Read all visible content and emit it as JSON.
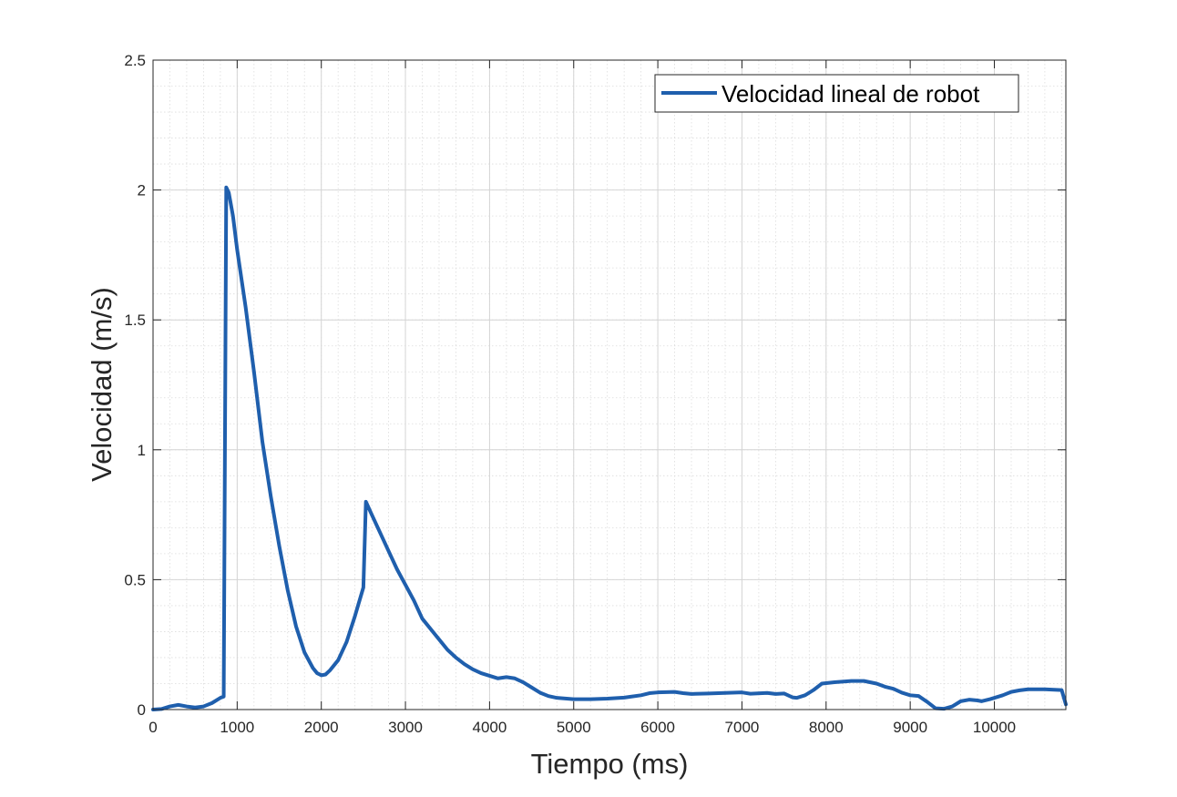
{
  "chart_data": {
    "type": "line",
    "xlabel": "Tiempo (ms)",
    "ylabel": "Velocidad (m/s)",
    "xlim": [
      0,
      10850
    ],
    "ylim": [
      0,
      2.5
    ],
    "x_ticks": [
      0,
      1000,
      2000,
      3000,
      4000,
      5000,
      6000,
      7000,
      8000,
      9000,
      10000
    ],
    "x_tick_labels": [
      "0",
      "1000",
      "2000",
      "3000",
      "4000",
      "5000",
      "6000",
      "7000",
      "8000",
      "9000",
      "10000"
    ],
    "y_ticks": [
      0,
      0.5,
      1,
      1.5,
      2,
      2.5
    ],
    "y_tick_labels": [
      "0",
      "0.5",
      "1",
      "1.5",
      "2",
      "2.5"
    ],
    "grid": true,
    "minor_grid": true,
    "legend_position": "top-right",
    "line_color": "#1f5fad",
    "series": [
      {
        "name": "Velocidad lineal de robot",
        "points": [
          [
            0,
            0.0
          ],
          [
            100,
            0.002
          ],
          [
            200,
            0.012
          ],
          [
            300,
            0.018
          ],
          [
            400,
            0.012
          ],
          [
            500,
            0.008
          ],
          [
            600,
            0.012
          ],
          [
            700,
            0.025
          ],
          [
            800,
            0.045
          ],
          [
            840,
            0.05
          ],
          [
            870,
            2.01
          ],
          [
            900,
            1.99
          ],
          [
            950,
            1.9
          ],
          [
            1000,
            1.77
          ],
          [
            1100,
            1.55
          ],
          [
            1200,
            1.3
          ],
          [
            1300,
            1.03
          ],
          [
            1400,
            0.82
          ],
          [
            1500,
            0.63
          ],
          [
            1600,
            0.46
          ],
          [
            1700,
            0.32
          ],
          [
            1800,
            0.22
          ],
          [
            1900,
            0.16
          ],
          [
            1950,
            0.14
          ],
          [
            2000,
            0.132
          ],
          [
            2050,
            0.135
          ],
          [
            2100,
            0.15
          ],
          [
            2200,
            0.19
          ],
          [
            2300,
            0.26
          ],
          [
            2400,
            0.36
          ],
          [
            2500,
            0.47
          ],
          [
            2530,
            0.8
          ],
          [
            2600,
            0.75
          ],
          [
            2700,
            0.68
          ],
          [
            2800,
            0.61
          ],
          [
            2900,
            0.54
          ],
          [
            3000,
            0.48
          ],
          [
            3100,
            0.42
          ],
          [
            3200,
            0.35
          ],
          [
            3300,
            0.31
          ],
          [
            3400,
            0.27
          ],
          [
            3500,
            0.23
          ],
          [
            3600,
            0.2
          ],
          [
            3700,
            0.175
          ],
          [
            3800,
            0.155
          ],
          [
            3900,
            0.14
          ],
          [
            4000,
            0.13
          ],
          [
            4100,
            0.12
          ],
          [
            4200,
            0.125
          ],
          [
            4300,
            0.12
          ],
          [
            4400,
            0.105
          ],
          [
            4500,
            0.085
          ],
          [
            4600,
            0.065
          ],
          [
            4700,
            0.052
          ],
          [
            4800,
            0.045
          ],
          [
            5000,
            0.04
          ],
          [
            5200,
            0.04
          ],
          [
            5400,
            0.042
          ],
          [
            5600,
            0.046
          ],
          [
            5800,
            0.055
          ],
          [
            5900,
            0.063
          ],
          [
            6000,
            0.066
          ],
          [
            6200,
            0.068
          ],
          [
            6300,
            0.063
          ],
          [
            6400,
            0.06
          ],
          [
            6600,
            0.062
          ],
          [
            6800,
            0.064
          ],
          [
            7000,
            0.066
          ],
          [
            7100,
            0.061
          ],
          [
            7300,
            0.064
          ],
          [
            7400,
            0.06
          ],
          [
            7500,
            0.062
          ],
          [
            7600,
            0.047
          ],
          [
            7650,
            0.045
          ],
          [
            7750,
            0.055
          ],
          [
            7850,
            0.075
          ],
          [
            7950,
            0.1
          ],
          [
            8100,
            0.105
          ],
          [
            8300,
            0.11
          ],
          [
            8450,
            0.11
          ],
          [
            8600,
            0.1
          ],
          [
            8700,
            0.088
          ],
          [
            8800,
            0.08
          ],
          [
            8900,
            0.065
          ],
          [
            9000,
            0.055
          ],
          [
            9100,
            0.052
          ],
          [
            9200,
            0.03
          ],
          [
            9300,
            0.005
          ],
          [
            9400,
            0.003
          ],
          [
            9500,
            0.012
          ],
          [
            9600,
            0.032
          ],
          [
            9700,
            0.038
          ],
          [
            9800,
            0.035
          ],
          [
            9850,
            0.032
          ],
          [
            9950,
            0.04
          ],
          [
            10100,
            0.055
          ],
          [
            10200,
            0.068
          ],
          [
            10300,
            0.074
          ],
          [
            10400,
            0.078
          ],
          [
            10600,
            0.078
          ],
          [
            10800,
            0.075
          ],
          [
            10850,
            0.02
          ]
        ]
      }
    ]
  }
}
